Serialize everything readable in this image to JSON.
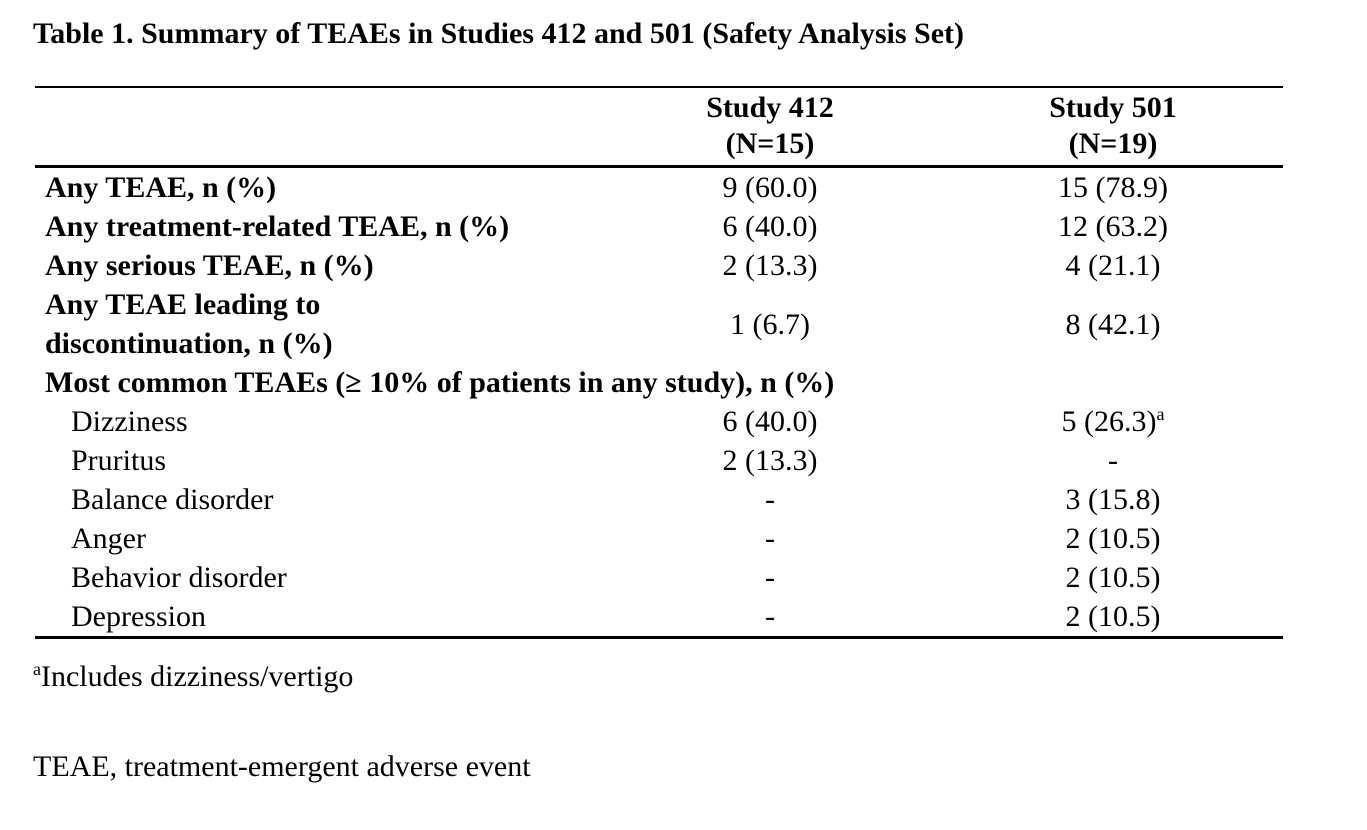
{
  "title": "Table 1. Summary of TEAEs in Studies 412 and 501 (Safety Analysis Set)",
  "table": {
    "columns": [
      {
        "name": "Study 412",
        "n": "(N=15)"
      },
      {
        "name": "Study 501",
        "n": "(N=19)"
      }
    ],
    "rows": [
      {
        "label": "Any TEAE, n (%)",
        "study412": "9 (60.0)",
        "study501": "15 (78.9)"
      },
      {
        "label": "Any treatment-related TEAE, n (%)",
        "study412": "6 (40.0)",
        "study501": "12 (63.2)"
      },
      {
        "label": "Any serious TEAE, n (%)",
        "study412": "2 (13.3)",
        "study501": "4 (21.1)"
      },
      {
        "label_line1": "Any TEAE leading to",
        "label_line2": "discontinuation, n (%)",
        "study412": "1 (6.7)",
        "study501": "8 (42.1)"
      },
      {
        "label": "Most common TEAEs (≥ 10% of patients in any study), n (%)",
        "section": true
      },
      {
        "label": "Dizziness",
        "study412": "6 (40.0)",
        "study501": "5 (26.3)",
        "study501_sup": "a"
      },
      {
        "label": "Pruritus",
        "study412": "2 (13.3)",
        "study501": "-"
      },
      {
        "label": "Balance disorder",
        "study412": "-",
        "study501": "3 (15.8)"
      },
      {
        "label": "Anger",
        "study412": "-",
        "study501": "2 (10.5)"
      },
      {
        "label": "Behavior disorder",
        "study412": "-",
        "study501": "2 (10.5)"
      },
      {
        "label": "Depression",
        "study412": "-",
        "study501": "2 (10.5)"
      }
    ]
  },
  "footnotes": {
    "a": {
      "marker": "a",
      "text": "Includes dizziness/vertigo"
    },
    "abbreviation": "TEAE, treatment-emergent adverse event"
  }
}
